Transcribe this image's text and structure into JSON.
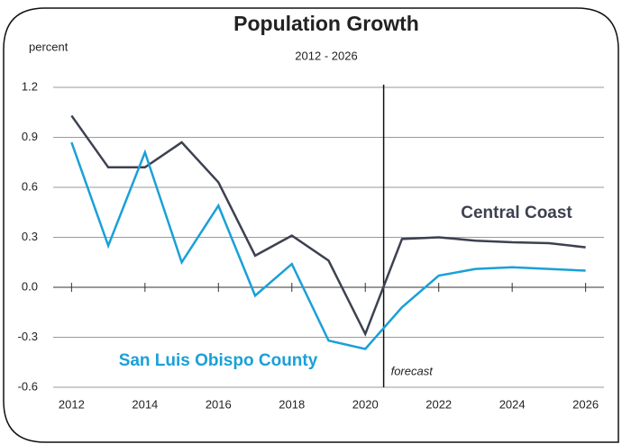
{
  "chart_data": {
    "type": "line",
    "title": "Population Growth",
    "subtitle": "2012 - 2026",
    "y_label": "percent",
    "annotation": "forecast",
    "forecast_line": 2020.5,
    "x": [
      2012,
      2013,
      2014,
      2015,
      2016,
      2017,
      2018,
      2019,
      2020,
      2021,
      2022,
      2023,
      2024,
      2025,
      2026
    ],
    "series": [
      {
        "name": "Central Coast",
        "color": "#3d4150",
        "values": [
          1.03,
          0.72,
          0.72,
          0.87,
          0.63,
          0.19,
          0.31,
          0.16,
          -0.28,
          0.29,
          0.3,
          0.28,
          0.27,
          0.265,
          0.24
        ]
      },
      {
        "name": "San Luis Obispo County",
        "color": "#1aa0d8",
        "values": [
          0.87,
          0.25,
          0.81,
          0.15,
          0.49,
          -0.05,
          0.14,
          -0.32,
          -0.37,
          -0.12,
          0.07,
          0.11,
          0.12,
          0.11,
          0.1
        ]
      }
    ],
    "xlim": [
      2011.5,
      2026.5
    ],
    "xticks": [
      2012,
      2014,
      2016,
      2018,
      2020,
      2022,
      2024,
      2026
    ],
    "ylim": [
      -0.6,
      1.2
    ],
    "yticks": [
      -0.6,
      -0.3,
      {
        "value": 0,
        "label": "0.0"
      },
      0.3,
      0.6,
      0.9,
      1.2
    ],
    "grid": true
  }
}
